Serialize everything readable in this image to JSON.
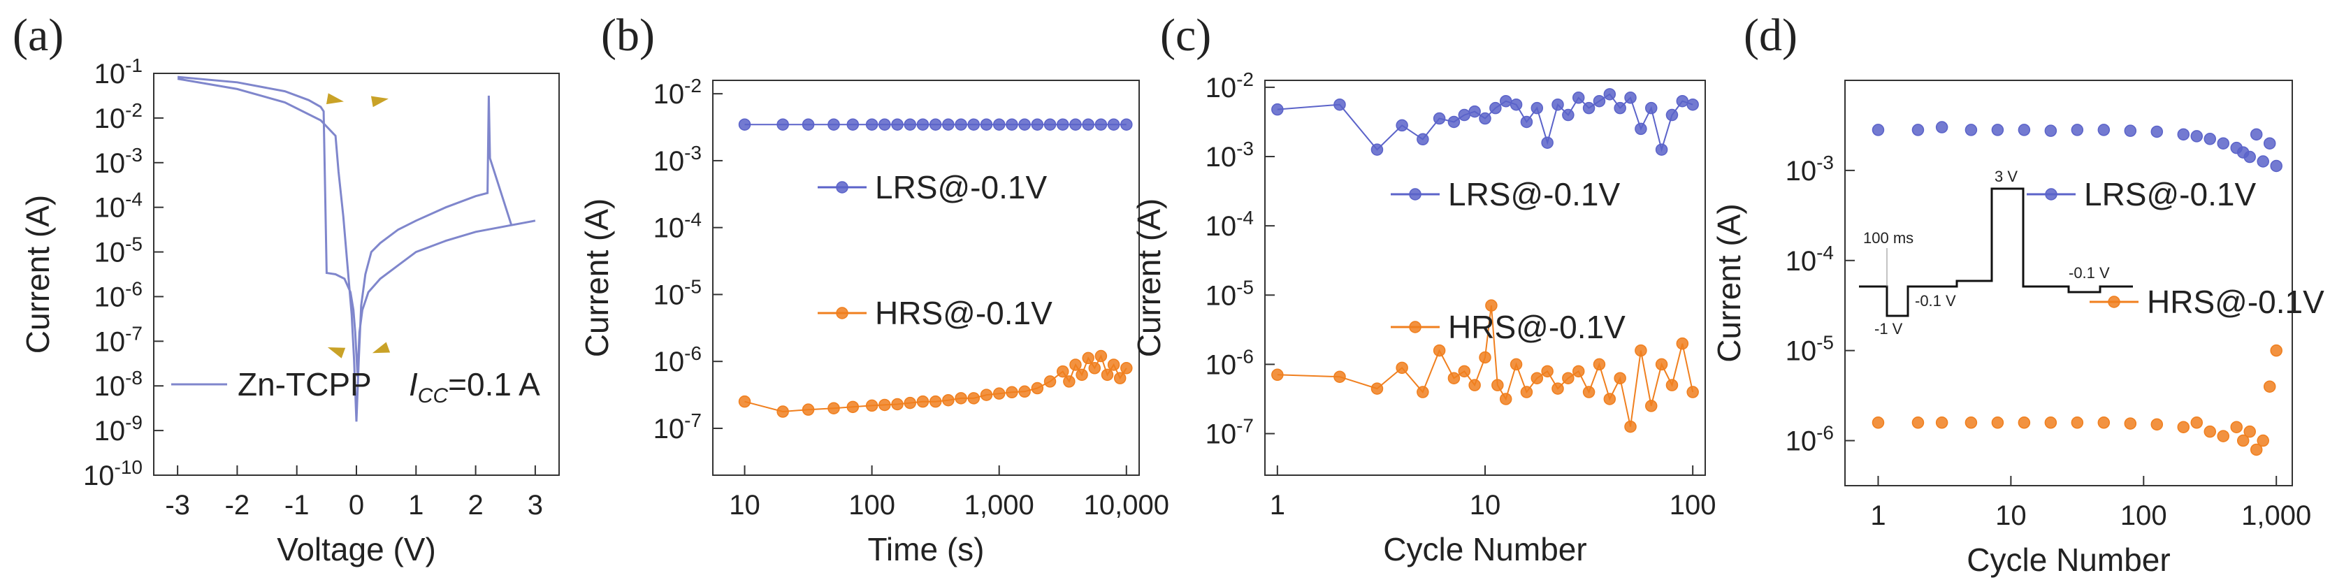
{
  "colors": {
    "blue": "#5b63c9",
    "orange": "#f07f1e",
    "axis": "#333333",
    "iv": "#7f86cc"
  },
  "chart_data": [
    {
      "id": "a",
      "panel_label": "(a)",
      "type": "line",
      "xlabel": "Voltage (V)",
      "ylabel": "Current (A)",
      "xlim": [
        -3.4,
        3.4
      ],
      "ylim": [
        -10,
        -1
      ],
      "x_ticks": [
        {
          "v": -3,
          "label": "-3"
        },
        {
          "v": -2,
          "label": "-2"
        },
        {
          "v": -1,
          "label": "-1"
        },
        {
          "v": 0,
          "label": "0"
        },
        {
          "v": 1,
          "label": "1"
        },
        {
          "v": 2,
          "label": "2"
        },
        {
          "v": 3,
          "label": "3"
        }
      ],
      "y_ticks": [
        {
          "v": -1,
          "base": "10",
          "exp": "-1"
        },
        {
          "v": -2,
          "base": "10",
          "exp": "-2"
        },
        {
          "v": -3,
          "base": "10",
          "exp": "-3"
        },
        {
          "v": -4,
          "base": "10",
          "exp": "-4"
        },
        {
          "v": -5,
          "base": "10",
          "exp": "-5"
        },
        {
          "v": -6,
          "base": "10",
          "exp": "-6"
        },
        {
          "v": -7,
          "base": "10",
          "exp": "-7"
        },
        {
          "v": -8,
          "base": "10",
          "exp": "-8"
        },
        {
          "v": -9,
          "base": "10",
          "exp": "-9"
        },
        {
          "v": -10,
          "base": "10",
          "exp": "-10"
        }
      ],
      "series": [
        {
          "name": "Zn-TCPP",
          "y_scale": "log10",
          "x": [
            -3.0,
            -2.0,
            -1.2,
            -0.6,
            -0.35,
            -0.3,
            -0.22,
            -0.15,
            -0.08,
            -0.04,
            0.0,
            0.04,
            0.08,
            0.15,
            0.25,
            0.4,
            0.7,
            1.0,
            1.5,
            2.0,
            2.2,
            2.22,
            2.24,
            2.6,
            3.0,
            2.6,
            2.0,
            1.5,
            1.0,
            0.7,
            0.4,
            0.2,
            0.1,
            0.05,
            0.02,
            -0.02,
            -0.05,
            -0.1,
            -0.2,
            -0.35,
            -0.45,
            -0.5,
            -0.55,
            -0.6,
            -0.8,
            -1.2,
            -2.0,
            -3.0
          ],
          "y": [
            -1.12,
            -1.35,
            -1.65,
            -2.05,
            -2.4,
            -3.2,
            -4.2,
            -5.3,
            -6.4,
            -7.4,
            -8.8,
            -7.4,
            -6.2,
            -5.5,
            -5.0,
            -4.8,
            -4.5,
            -4.3,
            -4.0,
            -3.75,
            -3.68,
            -1.5,
            -2.9,
            -4.4,
            -4.3,
            -4.4,
            -4.55,
            -4.75,
            -5.0,
            -5.3,
            -5.6,
            -5.9,
            -6.3,
            -6.8,
            -7.8,
            -6.8,
            -6.3,
            -5.9,
            -5.6,
            -5.5,
            -5.48,
            -5.47,
            -1.85,
            -1.75,
            -1.6,
            -1.4,
            -1.2,
            -1.08
          ]
        }
      ],
      "legend": "Zn-TCPP",
      "annotation": {
        "prefix": "I",
        "sub": "CC",
        "suffix": "=0.1 A"
      }
    },
    {
      "id": "b",
      "panel_label": "(b)",
      "type": "scatter",
      "xlabel": "Time (s)",
      "ylabel": "Current (A)",
      "x_scale": "log10",
      "xlim_log": [
        0.75,
        4.1
      ],
      "ylim_log": [
        -7.7,
        -1.8
      ],
      "x_ticks": [
        {
          "v": 1,
          "label": "10"
        },
        {
          "v": 2,
          "label": "100"
        },
        {
          "v": 3,
          "label": "1,000"
        },
        {
          "v": 4,
          "label": "10,000"
        }
      ],
      "y_ticks": [
        {
          "v": -2,
          "base": "10",
          "exp": "-2"
        },
        {
          "v": -3,
          "base": "10",
          "exp": "-3"
        },
        {
          "v": -4,
          "base": "10",
          "exp": "-4"
        },
        {
          "v": -5,
          "base": "10",
          "exp": "-5"
        },
        {
          "v": -6,
          "base": "10",
          "exp": "-6"
        },
        {
          "v": -7,
          "base": "10",
          "exp": "-7"
        }
      ],
      "series": [
        {
          "name": "LRS@-0.1V",
          "x_log": [
            1.0,
            1.3,
            1.5,
            1.7,
            1.85,
            2.0,
            2.1,
            2.2,
            2.3,
            2.4,
            2.5,
            2.6,
            2.7,
            2.8,
            2.9,
            3.0,
            3.1,
            3.2,
            3.3,
            3.4,
            3.5,
            3.6,
            3.7,
            3.8,
            3.9,
            4.0
          ],
          "y_log": [
            -2.46,
            -2.46,
            -2.46,
            -2.46,
            -2.46,
            -2.46,
            -2.46,
            -2.46,
            -2.46,
            -2.46,
            -2.46,
            -2.46,
            -2.46,
            -2.46,
            -2.46,
            -2.46,
            -2.46,
            -2.46,
            -2.46,
            -2.46,
            -2.46,
            -2.46,
            -2.46,
            -2.46,
            -2.46,
            -2.46
          ]
        },
        {
          "name": "HRS@-0.1V",
          "x_log": [
            1.0,
            1.3,
            1.5,
            1.7,
            1.85,
            2.0,
            2.1,
            2.2,
            2.3,
            2.4,
            2.5,
            2.6,
            2.7,
            2.8,
            2.9,
            3.0,
            3.1,
            3.2,
            3.3,
            3.4,
            3.5,
            3.55,
            3.6,
            3.65,
            3.7,
            3.75,
            3.8,
            3.85,
            3.9,
            3.95,
            4.0
          ],
          "y_log": [
            -6.6,
            -6.75,
            -6.72,
            -6.7,
            -6.68,
            -6.66,
            -6.65,
            -6.64,
            -6.62,
            -6.6,
            -6.6,
            -6.58,
            -6.55,
            -6.55,
            -6.5,
            -6.48,
            -6.46,
            -6.45,
            -6.4,
            -6.3,
            -6.15,
            -6.3,
            -6.05,
            -6.2,
            -5.95,
            -6.1,
            -5.92,
            -6.2,
            -6.05,
            -6.25,
            -6.1
          ]
        }
      ]
    },
    {
      "id": "c",
      "panel_label": "(c)",
      "type": "scatter",
      "xlabel": "Cycle Number",
      "ylabel": "Current (A)",
      "x_scale": "log10",
      "xlim_log": [
        -0.06,
        2.06
      ],
      "ylim_log": [
        -7.6,
        -1.9
      ],
      "x_ticks": [
        {
          "v": 0,
          "label": "1"
        },
        {
          "v": 1,
          "label": "10"
        },
        {
          "v": 2,
          "label": "100"
        }
      ],
      "y_ticks": [
        {
          "v": -2,
          "base": "10",
          "exp": "-2"
        },
        {
          "v": -3,
          "base": "10",
          "exp": "-3"
        },
        {
          "v": -4,
          "base": "10",
          "exp": "-4"
        },
        {
          "v": -5,
          "base": "10",
          "exp": "-5"
        },
        {
          "v": -6,
          "base": "10",
          "exp": "-6"
        },
        {
          "v": -7,
          "base": "10",
          "exp": "-7"
        }
      ],
      "series": [
        {
          "name": "LRS@-0.1V",
          "x_log": [
            0.0,
            0.3,
            0.48,
            0.6,
            0.7,
            0.78,
            0.85,
            0.9,
            0.95,
            1.0,
            1.05,
            1.1,
            1.15,
            1.2,
            1.25,
            1.3,
            1.35,
            1.4,
            1.45,
            1.5,
            1.55,
            1.6,
            1.65,
            1.7,
            1.75,
            1.8,
            1.85,
            1.9,
            1.95,
            2.0
          ],
          "y_log": [
            -2.32,
            -2.25,
            -2.9,
            -2.55,
            -2.75,
            -2.45,
            -2.5,
            -2.4,
            -2.35,
            -2.45,
            -2.3,
            -2.2,
            -2.25,
            -2.5,
            -2.3,
            -2.8,
            -2.25,
            -2.4,
            -2.15,
            -2.3,
            -2.2,
            -2.1,
            -2.3,
            -2.15,
            -2.6,
            -2.3,
            -2.9,
            -2.4,
            -2.2,
            -2.25
          ]
        },
        {
          "name": "HRS@-0.1V",
          "x_log": [
            0.0,
            0.3,
            0.48,
            0.6,
            0.7,
            0.78,
            0.85,
            0.9,
            0.95,
            1.0,
            1.03,
            1.06,
            1.1,
            1.15,
            1.2,
            1.25,
            1.3,
            1.35,
            1.4,
            1.45,
            1.5,
            1.55,
            1.6,
            1.65,
            1.7,
            1.75,
            1.8,
            1.85,
            1.9,
            1.95,
            2.0
          ],
          "y_log": [
            -6.15,
            -6.18,
            -6.35,
            -6.05,
            -6.4,
            -5.8,
            -6.2,
            -6.1,
            -6.3,
            -5.9,
            -5.15,
            -6.3,
            -6.5,
            -6.0,
            -6.4,
            -6.2,
            -6.1,
            -6.35,
            -6.2,
            -6.1,
            -6.4,
            -6.0,
            -6.5,
            -6.2,
            -6.9,
            -5.8,
            -6.6,
            -6.0,
            -6.3,
            -5.7,
            -6.4
          ]
        }
      ]
    },
    {
      "id": "d",
      "panel_label": "(d)",
      "type": "scatter",
      "xlabel": "Cycle Number",
      "ylabel": "Current (A)",
      "x_scale": "log10",
      "xlim_log": [
        -0.25,
        3.12
      ],
      "ylim_log": [
        -6.5,
        -2.0
      ],
      "x_ticks": [
        {
          "v": 0,
          "label": "1"
        },
        {
          "v": 1,
          "label": "10"
        },
        {
          "v": 2,
          "label": "100"
        },
        {
          "v": 3,
          "label": "1,000"
        }
      ],
      "y_ticks": [
        {
          "v": -3,
          "base": "10",
          "exp": "-3"
        },
        {
          "v": -4,
          "base": "10",
          "exp": "-4"
        },
        {
          "v": -5,
          "base": "10",
          "exp": "-5"
        },
        {
          "v": -6,
          "base": "10",
          "exp": "-6"
        }
      ],
      "series": [
        {
          "name": "LRS@-0.1V",
          "x_log": [
            0.0,
            0.3,
            0.48,
            0.7,
            0.9,
            1.1,
            1.3,
            1.5,
            1.7,
            1.9,
            2.1,
            2.3,
            2.4,
            2.5,
            2.6,
            2.7,
            2.75,
            2.8,
            2.85,
            2.9,
            2.95,
            3.0
          ],
          "y_log": [
            -2.55,
            -2.55,
            -2.52,
            -2.55,
            -2.55,
            -2.55,
            -2.56,
            -2.55,
            -2.55,
            -2.56,
            -2.57,
            -2.6,
            -2.62,
            -2.65,
            -2.7,
            -2.75,
            -2.8,
            -2.85,
            -2.6,
            -2.9,
            -2.7,
            -2.95
          ]
        },
        {
          "name": "HRS@-0.1V",
          "x_log": [
            0.0,
            0.3,
            0.48,
            0.7,
            0.9,
            1.1,
            1.3,
            1.5,
            1.7,
            1.9,
            2.1,
            2.3,
            2.4,
            2.5,
            2.6,
            2.7,
            2.75,
            2.8,
            2.85,
            2.9,
            2.95,
            3.0
          ],
          "y_log": [
            -5.8,
            -5.8,
            -5.8,
            -5.8,
            -5.8,
            -5.8,
            -5.8,
            -5.8,
            -5.8,
            -5.81,
            -5.82,
            -5.85,
            -5.8,
            -5.9,
            -5.95,
            -5.85,
            -6.0,
            -5.9,
            -6.1,
            -6.0,
            -5.4,
            -5.0
          ]
        }
      ],
      "inset": {
        "label_100ms": "100 ms",
        "label_3v": "3 V",
        "label_m1v": "-1 V",
        "label_m01v_a": "-0.1 V",
        "label_m01v_b": "-0.1 V"
      }
    }
  ]
}
